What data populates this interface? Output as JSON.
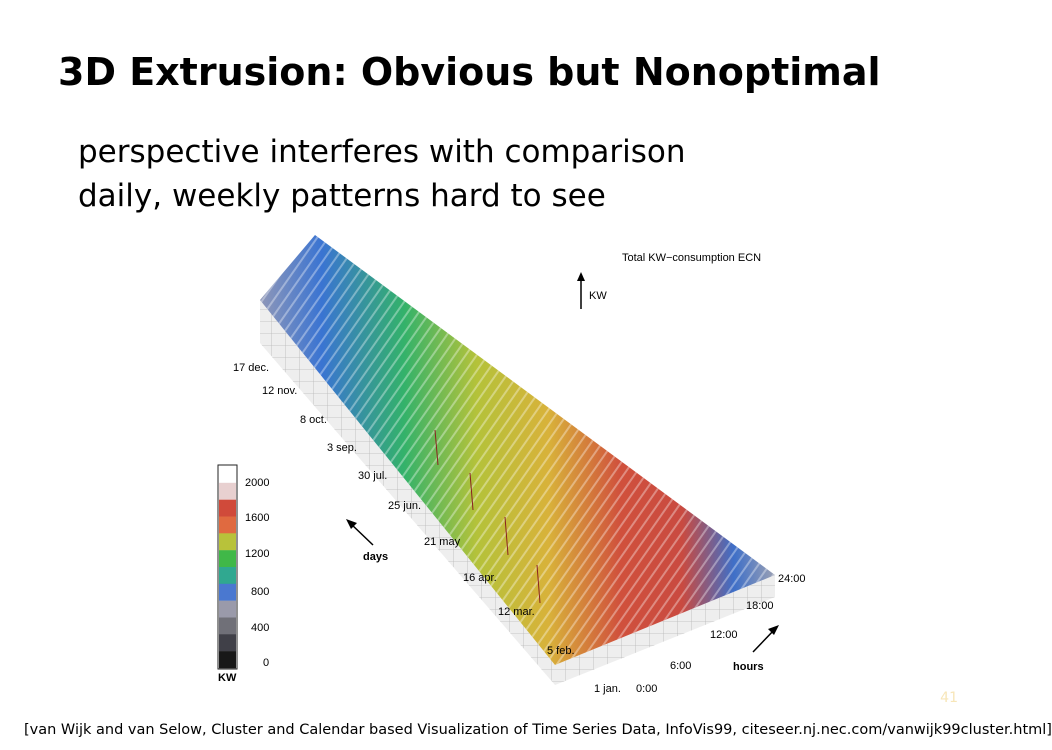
{
  "slide": {
    "title": "3D Extrusion: Obvious but Nonoptimal",
    "bullets": [
      "perspective interferes with comparison",
      "daily, weekly patterns hard to see"
    ],
    "slide_number": "41",
    "citation": "[van Wijk and van Selow, Cluster and Calendar based Visualization of Time Series Data, InfoVis99, citeseer.nj.nec.com/vanwijk99cluster.html]"
  },
  "figure": {
    "title": "Total KW−consumption ECN",
    "z_label": "KW",
    "days_label": "days",
    "hours_label": "hours",
    "date_ticks": [
      "17 dec.",
      "12 nov.",
      "8 oct.",
      "3 sep.",
      "30 jul.",
      "25 jun.",
      "21 may",
      "16 apr.",
      "12 mar.",
      "5 feb.",
      "1 jan."
    ],
    "hour_ticks": [
      "0:00",
      "6:00",
      "12:00",
      "18:00",
      "24:00"
    ],
    "legend": {
      "unit": "KW",
      "ticks": [
        "2000",
        "1600",
        "1200",
        "800",
        "400",
        "0"
      ],
      "colors": [
        "#ffffff",
        "#e8d0d0",
        "#d04a3a",
        "#e06a40",
        "#b8c23a",
        "#40b848",
        "#30a890",
        "#4a78d0",
        "#9a9aaa",
        "#707078",
        "#404048",
        "#181818"
      ]
    }
  }
}
